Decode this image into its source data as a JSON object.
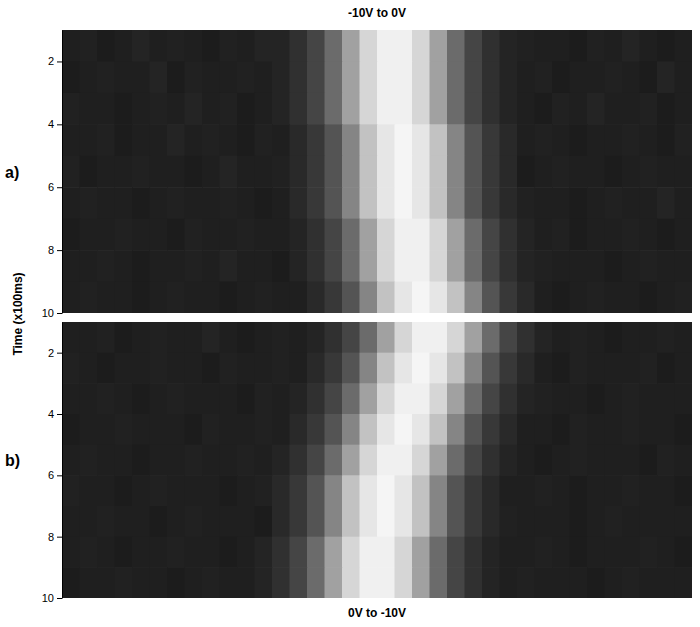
{
  "chart_data": [
    {
      "type": "heatmap",
      "title": "-10V to 0V",
      "panel": "a)",
      "ylabel": "Time (x100ms)",
      "xlim": [
        0,
        36
      ],
      "ylim": [
        1,
        10
      ],
      "yticks": [
        2,
        4,
        6,
        8,
        10
      ],
      "tick_labels": "y",
      "zlim": [
        0,
        100
      ],
      "y_edges": [
        1,
        2,
        3,
        4,
        5,
        6,
        7,
        8,
        9,
        10
      ],
      "z": [
        [
          12,
          13,
          11,
          12,
          14,
          12,
          13,
          12,
          11,
          13,
          12,
          14,
          14,
          19,
          27,
          42,
          63,
          84,
          94,
          94,
          84,
          63,
          42,
          27,
          19,
          14,
          13,
          12,
          12,
          11,
          13,
          12,
          14,
          12,
          11,
          12
        ],
        [
          11,
          12,
          13,
          12,
          12,
          14,
          11,
          13,
          12,
          12,
          13,
          12,
          14,
          19,
          27,
          42,
          63,
          84,
          94,
          94,
          84,
          63,
          42,
          27,
          19,
          14,
          12,
          13,
          11,
          12,
          12,
          13,
          12,
          11,
          14,
          12
        ],
        [
          13,
          12,
          12,
          11,
          12,
          13,
          12,
          14,
          12,
          13,
          11,
          12,
          14,
          19,
          27,
          42,
          63,
          84,
          94,
          94,
          84,
          63,
          42,
          27,
          19,
          14,
          12,
          11,
          13,
          12,
          14,
          12,
          12,
          13,
          11,
          12
        ],
        [
          12,
          12,
          13,
          11,
          12,
          12,
          14,
          12,
          13,
          12,
          11,
          13,
          12,
          16,
          22,
          33,
          52,
          76,
          90,
          96,
          90,
          76,
          52,
          33,
          22,
          16,
          12,
          13,
          12,
          11,
          12,
          12,
          13,
          12,
          11,
          13
        ],
        [
          13,
          11,
          12,
          12,
          13,
          12,
          12,
          11,
          12,
          14,
          12,
          12,
          13,
          16,
          22,
          33,
          52,
          76,
          90,
          96,
          90,
          76,
          52,
          33,
          22,
          16,
          11,
          12,
          13,
          12,
          12,
          11,
          12,
          13,
          12,
          12
        ],
        [
          12,
          13,
          12,
          12,
          11,
          12,
          13,
          12,
          12,
          13,
          12,
          11,
          12,
          16,
          22,
          33,
          52,
          76,
          90,
          96,
          90,
          76,
          52,
          33,
          22,
          16,
          13,
          12,
          12,
          11,
          12,
          13,
          12,
          12,
          14,
          12
        ],
        [
          11,
          12,
          12,
          13,
          12,
          12,
          11,
          13,
          12,
          12,
          13,
          12,
          12,
          14,
          19,
          27,
          42,
          63,
          84,
          94,
          94,
          84,
          63,
          42,
          27,
          19,
          14,
          12,
          13,
          11,
          12,
          12,
          13,
          12,
          11,
          12
        ],
        [
          12,
          12,
          13,
          12,
          11,
          12,
          12,
          13,
          12,
          14,
          12,
          12,
          11,
          14,
          19,
          27,
          42,
          63,
          84,
          94,
          94,
          84,
          63,
          42,
          27,
          19,
          14,
          13,
          12,
          12,
          12,
          11,
          12,
          13,
          12,
          12
        ],
        [
          12,
          13,
          12,
          12,
          11,
          12,
          13,
          12,
          12,
          11,
          12,
          13,
          12,
          12,
          16,
          22,
          33,
          52,
          76,
          90,
          96,
          90,
          76,
          52,
          33,
          22,
          16,
          12,
          11,
          12,
          13,
          12,
          12,
          11,
          12,
          13
        ]
      ]
    },
    {
      "type": "heatmap",
      "title": "0V to -10V",
      "panel": "b)",
      "xlim": [
        0,
        36
      ],
      "ylim": [
        1,
        10
      ],
      "yticks": [
        2,
        4,
        6,
        8,
        10
      ],
      "tick_labels": "y",
      "zlim": [
        0,
        100
      ],
      "y_edges": [
        1,
        2,
        3,
        4,
        5,
        6,
        7,
        8,
        9,
        10
      ],
      "z": [
        [
          12,
          12,
          13,
          11,
          12,
          13,
          12,
          12,
          14,
          12,
          11,
          12,
          13,
          12,
          14,
          19,
          27,
          42,
          63,
          84,
          94,
          94,
          84,
          63,
          42,
          27,
          19,
          14,
          12,
          13,
          12,
          11,
          12,
          12,
          13,
          12
        ],
        [
          13,
          12,
          11,
          12,
          12,
          13,
          12,
          12,
          11,
          13,
          12,
          12,
          13,
          12,
          16,
          22,
          33,
          52,
          76,
          90,
          96,
          90,
          76,
          52,
          33,
          22,
          16,
          12,
          11,
          13,
          12,
          12,
          12,
          13,
          11,
          12
        ],
        [
          12,
          12,
          13,
          12,
          11,
          12,
          13,
          12,
          12,
          12,
          11,
          13,
          12,
          14,
          19,
          27,
          42,
          63,
          84,
          94,
          94,
          84,
          63,
          42,
          27,
          19,
          14,
          13,
          12,
          12,
          11,
          12,
          13,
          12,
          12,
          12
        ],
        [
          11,
          12,
          12,
          13,
          12,
          12,
          12,
          11,
          13,
          12,
          12,
          13,
          12,
          16,
          22,
          33,
          52,
          76,
          90,
          96,
          90,
          76,
          52,
          33,
          22,
          16,
          12,
          12,
          11,
          13,
          12,
          12,
          13,
          12,
          12,
          11
        ],
        [
          12,
          13,
          12,
          12,
          11,
          12,
          12,
          13,
          12,
          12,
          13,
          12,
          14,
          19,
          27,
          42,
          63,
          84,
          94,
          94,
          84,
          63,
          42,
          27,
          19,
          14,
          12,
          11,
          12,
          13,
          12,
          12,
          12,
          11,
          13,
          12
        ],
        [
          13,
          12,
          12,
          11,
          12,
          13,
          12,
          12,
          12,
          11,
          12,
          13,
          16,
          22,
          33,
          52,
          76,
          90,
          96,
          90,
          76,
          52,
          33,
          22,
          16,
          12,
          12,
          13,
          12,
          11,
          12,
          12,
          13,
          12,
          12,
          11
        ],
        [
          12,
          12,
          13,
          12,
          12,
          11,
          12,
          13,
          12,
          12,
          12,
          11,
          16,
          22,
          33,
          52,
          76,
          90,
          96,
          90,
          76,
          52,
          33,
          22,
          16,
          13,
          12,
          12,
          12,
          11,
          12,
          13,
          12,
          12,
          12,
          12
        ],
        [
          12,
          13,
          12,
          11,
          12,
          12,
          13,
          12,
          12,
          11,
          12,
          14,
          19,
          27,
          42,
          63,
          84,
          94,
          94,
          84,
          63,
          42,
          27,
          19,
          14,
          12,
          12,
          13,
          12,
          11,
          12,
          12,
          12,
          13,
          12,
          11
        ],
        [
          11,
          12,
          12,
          13,
          12,
          12,
          11,
          12,
          13,
          12,
          12,
          14,
          19,
          27,
          42,
          63,
          84,
          94,
          94,
          84,
          63,
          42,
          27,
          19,
          14,
          12,
          13,
          12,
          12,
          12,
          11,
          12,
          13,
          12,
          12,
          12
        ]
      ]
    }
  ]
}
